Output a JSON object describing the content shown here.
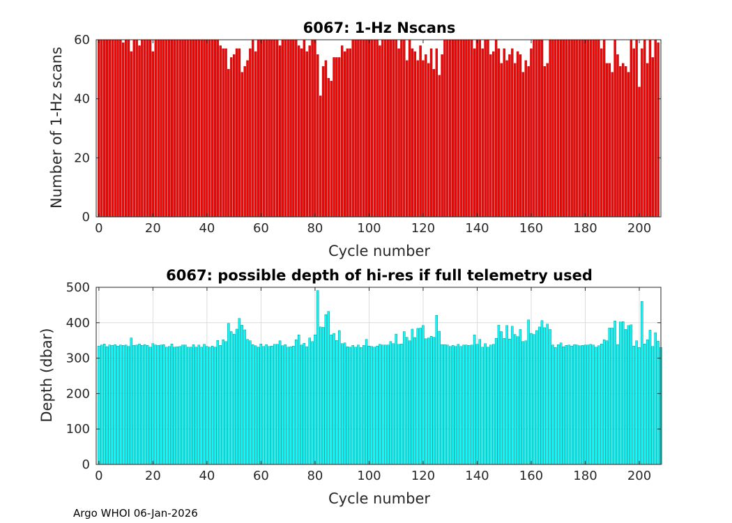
{
  "figure": {
    "footer": "Argo WHOI 06-Jan-2026"
  },
  "chart_data": [
    {
      "type": "bar",
      "title": "6067: 1-Hz Nscans",
      "xlabel": "Cycle number",
      "ylabel": "Number of 1-Hz scans",
      "xlim": [
        -1,
        208
      ],
      "ylim": [
        0,
        60
      ],
      "xticks": [
        0,
        20,
        40,
        60,
        80,
        100,
        120,
        140,
        160,
        180,
        200
      ],
      "yticks": [
        0,
        20,
        40,
        60
      ],
      "grid": false,
      "bar_color": "#ff0000",
      "x_start": 0,
      "values": [
        60,
        60,
        60,
        60,
        60,
        60,
        60,
        60,
        60,
        59,
        60,
        60,
        56,
        60,
        60,
        58,
        60,
        60,
        60,
        60,
        56,
        60,
        60,
        60,
        60,
        60,
        60,
        60,
        60,
        60,
        60,
        60,
        60,
        60,
        60,
        60,
        60,
        60,
        60,
        60,
        60,
        60,
        60,
        60,
        60,
        58,
        57,
        57,
        50,
        54,
        55,
        57,
        57,
        49,
        51,
        53,
        57,
        60,
        56,
        60,
        60,
        60,
        60,
        60,
        60,
        60,
        60,
        58,
        60,
        60,
        60,
        60,
        60,
        60,
        58,
        57,
        60,
        56,
        58,
        60,
        60,
        55,
        41,
        51,
        53,
        47,
        46,
        54,
        54,
        54,
        58,
        56,
        57,
        57,
        60,
        60,
        60,
        60,
        60,
        60,
        60,
        60,
        60,
        60,
        58,
        60,
        60,
        60,
        60,
        60,
        60,
        57,
        60,
        60,
        53,
        60,
        57,
        56,
        53,
        58,
        53,
        55,
        52,
        57,
        50,
        57,
        48,
        55,
        60,
        60,
        60,
        60,
        60,
        60,
        60,
        60,
        60,
        60,
        60,
        57,
        60,
        60,
        57,
        60,
        60,
        55,
        56,
        60,
        57,
        52,
        57,
        53,
        55,
        57,
        52,
        56,
        55,
        49,
        53,
        51,
        57,
        60,
        60,
        60,
        60,
        51,
        52,
        60,
        60,
        60,
        60,
        60,
        60,
        60,
        60,
        60,
        60,
        60,
        60,
        60,
        60,
        60,
        60,
        60,
        60,
        60,
        57,
        60,
        52,
        52,
        49,
        60,
        55,
        51,
        52,
        51,
        49,
        60,
        57,
        60,
        44,
        57,
        60,
        52,
        60,
        54,
        60,
        59
      ]
    },
    {
      "type": "bar",
      "title": "6067: possible depth of hi-res if full telemetry used",
      "xlabel": "Cycle number",
      "ylabel": "Depth (dbar)",
      "xlim": [
        -1,
        208
      ],
      "ylim": [
        0,
        500
      ],
      "xticks": [
        0,
        20,
        40,
        60,
        80,
        100,
        120,
        140,
        160,
        180,
        200
      ],
      "yticks": [
        0,
        100,
        200,
        300,
        400,
        500
      ],
      "grid": true,
      "bar_color": "#00ffff",
      "x_start": 0,
      "values": [
        334,
        337,
        340,
        332,
        337,
        336,
        338,
        334,
        337,
        336,
        337,
        333,
        357,
        336,
        337,
        340,
        336,
        338,
        336,
        331,
        341,
        337,
        336,
        337,
        338,
        331,
        333,
        340,
        331,
        332,
        333,
        337,
        337,
        331,
        331,
        338,
        331,
        337,
        331,
        339,
        333,
        331,
        334,
        331,
        350,
        336,
        352,
        347,
        398,
        375,
        368,
        382,
        412,
        393,
        380,
        353,
        349,
        338,
        335,
        331,
        340,
        333,
        338,
        333,
        334,
        339,
        339,
        349,
        335,
        338,
        331,
        332,
        334,
        352,
        366,
        337,
        342,
        332,
        357,
        347,
        366,
        491,
        388,
        387,
        423,
        432,
        366,
        370,
        350,
        378,
        341,
        343,
        332,
        331,
        336,
        331,
        337,
        330,
        336,
        353,
        334,
        333,
        331,
        334,
        339,
        337,
        337,
        337,
        347,
        341,
        368,
        339,
        340,
        375,
        359,
        349,
        382,
        358,
        384,
        385,
        392,
        355,
        357,
        362,
        359,
        421,
        376,
        338,
        338,
        337,
        333,
        336,
        333,
        339,
        333,
        337,
        337,
        336,
        337,
        366,
        339,
        353,
        331,
        341,
        331,
        337,
        339,
        356,
        393,
        375,
        356,
        392,
        354,
        390,
        367,
        361,
        381,
        347,
        349,
        408,
        370,
        367,
        378,
        388,
        406,
        386,
        396,
        381,
        337,
        330,
        338,
        343,
        332,
        336,
        337,
        334,
        338,
        337,
        335,
        336,
        337,
        337,
        339,
        337,
        331,
        335,
        340,
        352,
        349,
        385,
        385,
        405,
        338,
        402,
        403,
        381,
        392,
        394,
        334,
        349,
        330,
        460,
        340,
        352,
        379,
        333,
        372,
        348,
        330
      ]
    }
  ]
}
